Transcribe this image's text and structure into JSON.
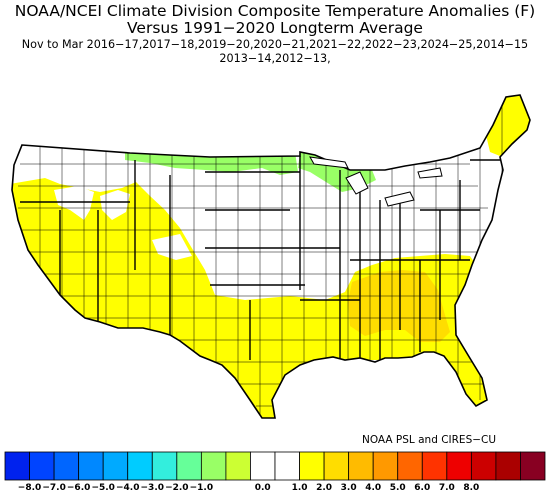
{
  "title": {
    "line1": "NOAA/NCEI Climate Division Composite Temperature Anomalies (F)",
    "line2": "Versus 1991−2020 Longterm Average",
    "line3": "Nov to Mar  2016−17,2017−18,2019−20,2020−21,2021−22,2022−23,2024−25,2014−15",
    "line4": "2013−14,2012−13,"
  },
  "credit": "NOAA PSL and CIRES−CU",
  "legend": {
    "colors": [
      "#0022ee",
      "#0044ff",
      "#0066ff",
      "#0088ff",
      "#00aaff",
      "#00ccff",
      "#33eedd",
      "#66ff99",
      "#99ff66",
      "#ccff33",
      "#ffffff",
      "#ffffff",
      "#ffff00",
      "#ffdd00",
      "#ffbb00",
      "#ff9900",
      "#ff6600",
      "#ff3300",
      "#ee0000",
      "#cc0000",
      "#aa0000",
      "#880022"
    ],
    "ticks": [
      "−8.0",
      "−7.0",
      "−6.0",
      "−5.0",
      "−4.0",
      "−3.0",
      "−2.0",
      "−1.0",
      "0.0",
      "1.0",
      "2.0",
      "3.0",
      "4.0",
      "5.0",
      "6.0",
      "7.0",
      "8.0"
    ]
  },
  "map": {
    "base_fill": "#ffffff",
    "border_color": "#000000",
    "regions": [
      {
        "name": "northern-plains-cool",
        "category": "-1.0 to -0.5",
        "color": "#99ff66"
      },
      {
        "name": "great-lakes-cool",
        "category": "-1.0 to -0.5",
        "color": "#99ff66"
      },
      {
        "name": "west-warm",
        "category": "0.5 to 1.0",
        "color": "#ffff00"
      },
      {
        "name": "south-warm",
        "category": "0.5 to 1.0",
        "color": "#ffff00"
      },
      {
        "name": "southeast-warm",
        "category": "1.0 to 1.5",
        "color": "#ffdd00"
      },
      {
        "name": "new-england-warm",
        "category": "0.5 to 1.0",
        "color": "#ffff00"
      }
    ]
  }
}
